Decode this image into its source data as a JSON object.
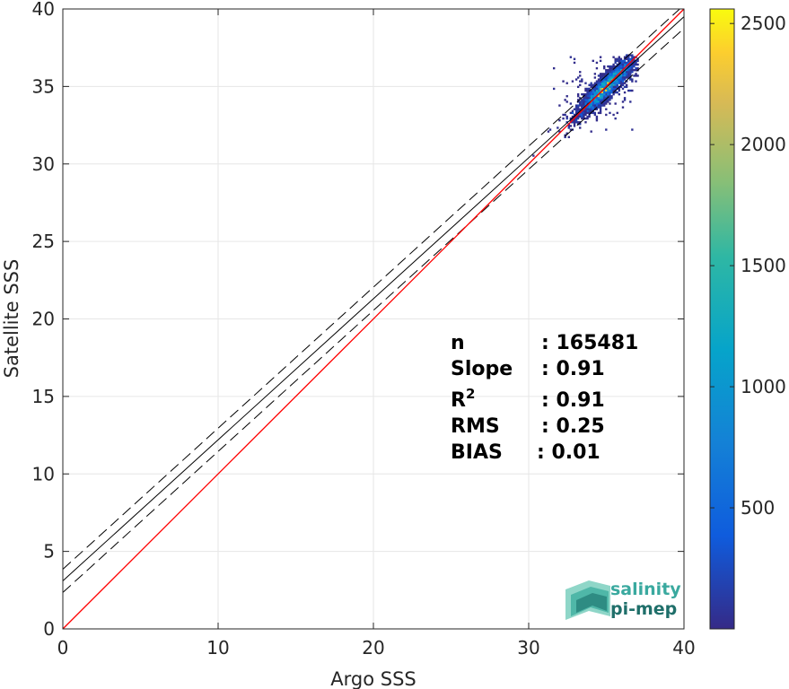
{
  "chart_data": {
    "type": "heatmap",
    "xlabel": "Argo SSS",
    "ylabel": "Satellite SSS",
    "xlim": [
      0,
      40
    ],
    "ylim": [
      0,
      40
    ],
    "xticks": [
      "0",
      "10",
      "20",
      "30",
      "40"
    ],
    "yticks": [
      "0",
      "5",
      "10",
      "15",
      "20",
      "25",
      "30",
      "35",
      "40"
    ],
    "grid": true,
    "colorbar": {
      "ticks": [
        "500",
        "1000",
        "1500",
        "2000",
        "2500"
      ],
      "range": [
        0,
        2560
      ],
      "colormap": "parula"
    },
    "density": {
      "center": [
        35.0,
        35.0
      ],
      "peak_count": 2500,
      "x_range": [
        29.0,
        37.0
      ],
      "y_range": [
        29.5,
        37.0
      ]
    },
    "lines": {
      "identity": {
        "slope": 1,
        "intercept": 0,
        "color": "#ff0000"
      },
      "fit": {
        "slope": 0.91,
        "intercept": 3.1,
        "color": "#000000"
      },
      "fit_upper": {
        "slope": 0.91,
        "intercept": 3.85,
        "color": "#000000"
      },
      "fit_lower": {
        "slope": 0.91,
        "intercept": 2.35,
        "color": "#000000"
      }
    },
    "stats": [
      {
        "label": "n",
        "value": ": 165481"
      },
      {
        "label": "Slope",
        "value": ": 0.91"
      },
      {
        "label": "R",
        "sup": "2",
        "value": ": 0.91"
      },
      {
        "label": "RMS",
        "value": ": 0.25"
      },
      {
        "label": "BIAS",
        "value": ": 0.01"
      }
    ]
  },
  "logo": {
    "line1": "salinity",
    "line2": "pi-mep",
    "color_primary": "#3aa99f",
    "color_secondary": "#1f6f6a"
  }
}
